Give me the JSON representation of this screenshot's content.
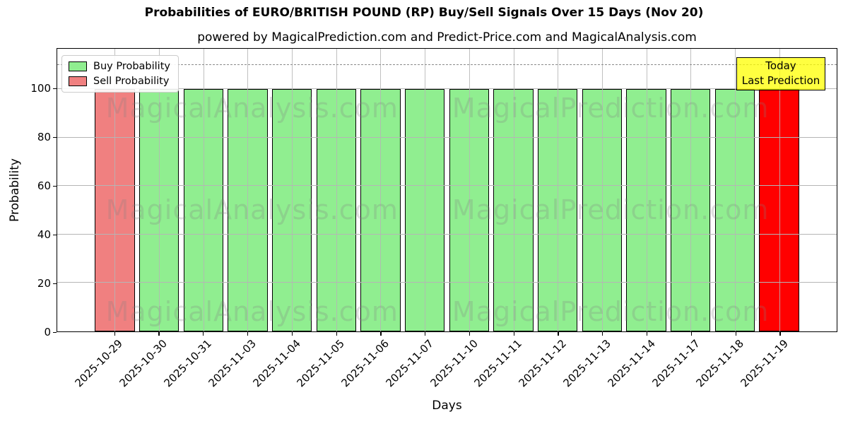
{
  "figure": {
    "title": "Probabilities of EURO/BRITISH POUND (RP) Buy/Sell Signals Over 15 Days (Nov 20)",
    "subtitle": "powered by MagicalPrediction.com and Predict-Price.com and MagicalAnalysis.com"
  },
  "chart_data": {
    "type": "bar",
    "title": "Probabilities of EURO/BRITISH POUND (RP) Buy/Sell Signals Over 15 Days (Nov 20)",
    "subtitle": "powered by MagicalPrediction.com and Predict-Price.com and MagicalAnalysis.com",
    "xlabel": "Days",
    "ylabel": "Probability",
    "ylim": [
      0,
      116.6
    ],
    "yticks": [
      0,
      20,
      40,
      60,
      80,
      100
    ],
    "grid": true,
    "dashed_line_y": 110,
    "legend_position": "upper left",
    "categories": [
      "2025-10-29",
      "2025-10-30",
      "2025-10-31",
      "2025-11-03",
      "2025-11-04",
      "2025-11-05",
      "2025-11-06",
      "2025-11-07",
      "2025-11-10",
      "2025-11-11",
      "2025-11-12",
      "2025-11-13",
      "2025-11-14",
      "2025-11-17",
      "2025-11-18",
      "2025-11-19"
    ],
    "values": [
      100,
      100,
      100,
      100,
      100,
      100,
      100,
      100,
      100,
      100,
      100,
      100,
      100,
      100,
      100,
      100
    ],
    "bar_signals": [
      "sell",
      "buy",
      "buy",
      "buy",
      "buy",
      "buy",
      "buy",
      "buy",
      "buy",
      "buy",
      "buy",
      "buy",
      "buy",
      "buy",
      "buy",
      "sell"
    ],
    "bar_colors": [
      "#F08080",
      "#90EE90",
      "#90EE90",
      "#90EE90",
      "#90EE90",
      "#90EE90",
      "#90EE90",
      "#90EE90",
      "#90EE90",
      "#90EE90",
      "#90EE90",
      "#90EE90",
      "#90EE90",
      "#90EE90",
      "#90EE90",
      "#FF0000"
    ]
  },
  "legend": {
    "items": [
      {
        "label": "Buy Probability",
        "color": "#90EE90"
      },
      {
        "label": "Sell Probability",
        "color": "#F08080"
      }
    ]
  },
  "annotation": {
    "lines": [
      "Today",
      "Last Prediction"
    ],
    "bg_color": "#FFFF00"
  },
  "watermarks": {
    "left_text": "MagicalAnalysis.com",
    "right_text": "MagicalPrediction.com"
  },
  "colors": {
    "buy": "#90EE90",
    "sell": "#F08080",
    "today_sell": "#FF0000",
    "grid": "#b5b5b5"
  }
}
